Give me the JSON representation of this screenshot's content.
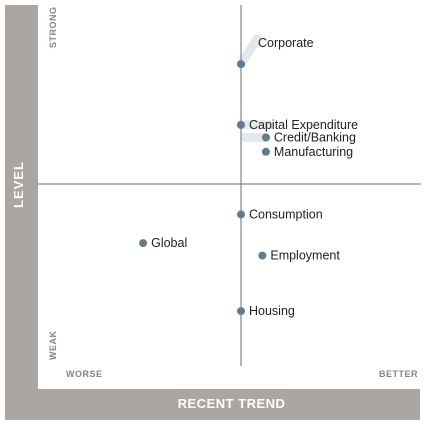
{
  "chart_data": {
    "type": "scatter",
    "title": "",
    "xlabel": "RECENT TREND",
    "ylabel": "LEVEL",
    "x_tick_labels": {
      "min": "WORSE",
      "max": "BETTER"
    },
    "y_tick_labels": {
      "min": "WEAK",
      "max": "STRONG"
    },
    "xlim": [
      -1,
      1
    ],
    "ylim": [
      -1,
      1
    ],
    "quadrant_lines": true,
    "marker_color": "#5f7d8f",
    "points": [
      {
        "label": "Corporate",
        "x": 0.0,
        "y": 0.67,
        "trend_from": [
          0.09,
          0.81
        ]
      },
      {
        "label": "Capital Expenditure",
        "x": 0.0,
        "y": 0.33,
        "trend_from": [
          0.16,
          0.33
        ]
      },
      {
        "label": "Credit/Banking",
        "x": 0.14,
        "y": 0.26,
        "trend_from": [
          0.02,
          0.26
        ]
      },
      {
        "label": "Manufacturing",
        "x": 0.14,
        "y": 0.18
      },
      {
        "label": "Consumption",
        "x": 0.0,
        "y": -0.17
      },
      {
        "label": "Global",
        "x": -0.55,
        "y": -0.33
      },
      {
        "label": "Employment",
        "x": 0.12,
        "y": -0.4
      },
      {
        "label": "Housing",
        "x": 0.0,
        "y": -0.71
      }
    ]
  }
}
